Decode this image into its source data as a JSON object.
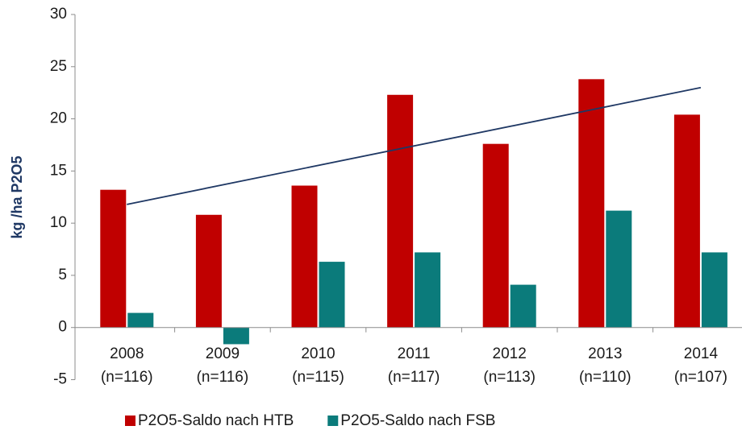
{
  "chart_data": {
    "type": "bar",
    "y_label": "kg /ha P2O5",
    "categories": [
      "2008",
      "2009",
      "2010",
      "2011",
      "2012",
      "2013",
      "2014"
    ],
    "category_notes": [
      "(n=116)",
      "(n=116)",
      "(n=115)",
      "(n=117)",
      "(n=113)",
      "(n=110)",
      "(n=107)"
    ],
    "series": [
      {
        "name": "P2O5-Saldo nach HTB",
        "color": "#c00000",
        "values": [
          13.2,
          10.8,
          13.6,
          22.3,
          17.6,
          23.8,
          20.4
        ]
      },
      {
        "name": "P2O5-Saldo nach FSB",
        "color": "#0b7b7b",
        "values": [
          1.4,
          -1.6,
          6.3,
          7.2,
          4.1,
          11.2,
          7.2
        ]
      }
    ],
    "trendline": {
      "color": "#1f3864",
      "values": [
        11.8,
        23.0
      ]
    },
    "ylim": [
      -5,
      30
    ],
    "yticks": [
      -5,
      0,
      5,
      10,
      15,
      20,
      25,
      30
    ],
    "grid": false,
    "legend": "bottom"
  }
}
